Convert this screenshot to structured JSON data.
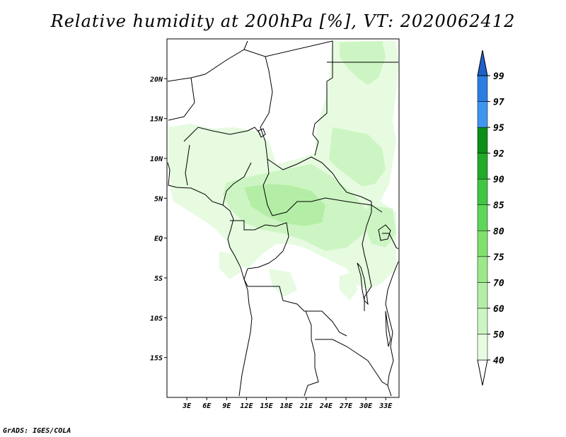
{
  "title": "Relative humidity at 200hPa [%], VT: 2020062412",
  "footer": "GrADS: IGES/COLA",
  "map": {
    "lon_range": [
      0,
      35
    ],
    "lat_range": [
      -20,
      25
    ],
    "lat_ticks": [
      {
        "value": 20,
        "label": "20N"
      },
      {
        "value": 15,
        "label": "15N"
      },
      {
        "value": 10,
        "label": "10N"
      },
      {
        "value": 5,
        "label": "5N"
      },
      {
        "value": 0,
        "label": "EQ"
      },
      {
        "value": -5,
        "label": "5S"
      },
      {
        "value": -10,
        "label": "10S"
      },
      {
        "value": -15,
        "label": "15S"
      }
    ],
    "lon_ticks": [
      {
        "value": 3,
        "label": "3E"
      },
      {
        "value": 6,
        "label": "6E"
      },
      {
        "value": 9,
        "label": "9E"
      },
      {
        "value": 12,
        "label": "12E"
      },
      {
        "value": 15,
        "label": "15E"
      },
      {
        "value": 18,
        "label": "18E"
      },
      {
        "value": 21,
        "label": "21E"
      },
      {
        "value": 24,
        "label": "24E"
      },
      {
        "value": 27,
        "label": "27E"
      },
      {
        "value": 30,
        "label": "30E"
      },
      {
        "value": 33,
        "label": "33E"
      }
    ]
  },
  "colorbar": {
    "levels": [
      "40",
      "50",
      "60",
      "70",
      "75",
      "80",
      "85",
      "90",
      "92",
      "95",
      "97",
      "99"
    ],
    "colors": [
      "#ffffff",
      "#e6fbe0",
      "#cdf5c3",
      "#b4eea6",
      "#9be889",
      "#80e06c",
      "#5ed65a",
      "#3fc643",
      "#22aa2a",
      "#0c8f18",
      "#3f96f0",
      "#2c7ee3",
      "#1f60c8"
    ]
  },
  "field": {
    "colors": {
      "c50": "#e6fbe0",
      "c60": "#cdf5c3",
      "c70": "#b4eea6"
    }
  },
  "map_lines_color": "#000000"
}
